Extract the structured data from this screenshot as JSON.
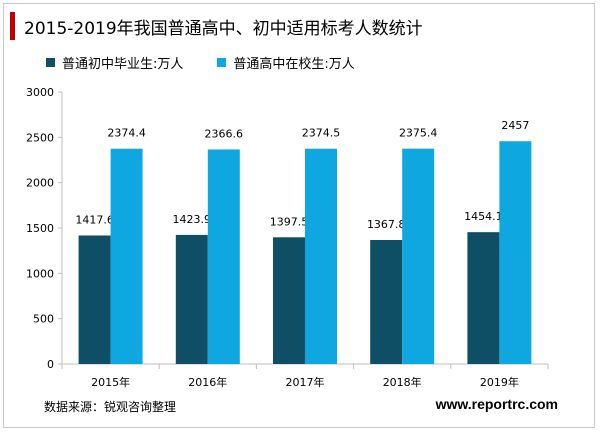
{
  "title": "2015-2019年我国普通高中、初中适用标考人数统计",
  "source": "数据来源：锐观咨询整理",
  "website": "www.reportrc.com",
  "colors": {
    "title_accent": "#c00000",
    "series1": "#0f4f66",
    "series2": "#0fa7e0",
    "axis": "#bfbfbf"
  },
  "chart_data": {
    "type": "bar",
    "categories": [
      "2015年",
      "2016年",
      "2017年",
      "2018年",
      "2019年"
    ],
    "series": [
      {
        "name": "普通初中毕业生:万人",
        "values": [
          1417.6,
          1423.9,
          1397.5,
          1367.8,
          1454.1
        ],
        "labels": [
          "1417.6",
          "1423.9",
          "1397.5",
          "1367.8",
          "1454.1"
        ]
      },
      {
        "name": "普通高中在校生:万人",
        "values": [
          2374.4,
          2366.6,
          2374.5,
          2375.4,
          2457
        ],
        "labels": [
          "2374.4",
          "2366.6",
          "2374.5",
          "2375.4",
          "2457"
        ]
      }
    ],
    "yticks": [
      "0",
      "500",
      "1000",
      "1500",
      "2000",
      "2500",
      "3000"
    ],
    "ylim": [
      0,
      3000
    ],
    "legend_position": "top-left",
    "grid": false
  }
}
